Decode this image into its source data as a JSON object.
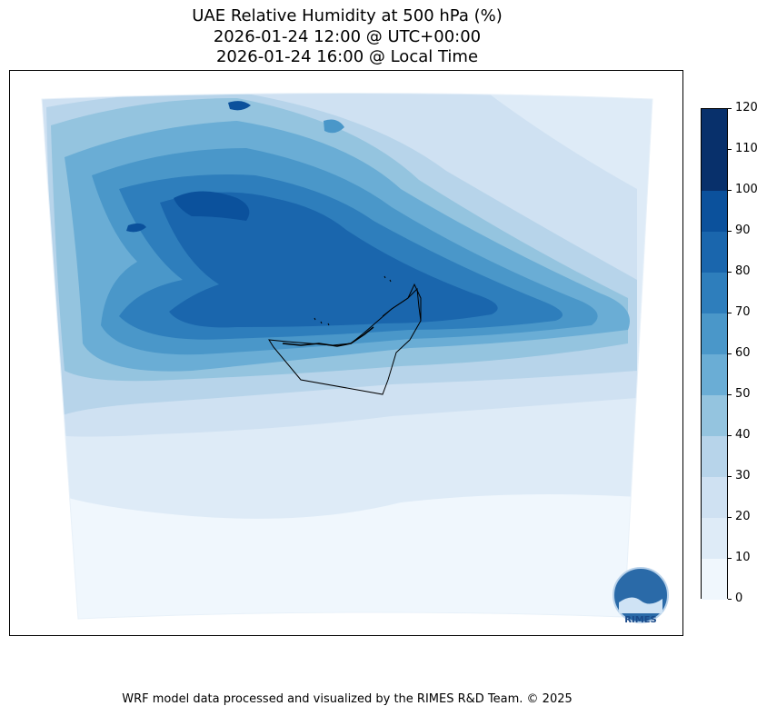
{
  "title": {
    "line1": "UAE Relative Humidity at 500 hPa (%)",
    "line2": "2026-01-24 12:00 @ UTC+00:00",
    "line3": "2026-01-24 16:00 @ Local Time"
  },
  "colorbar": {
    "levels": [
      0,
      10,
      20,
      30,
      40,
      50,
      60,
      70,
      80,
      90,
      100,
      110,
      120
    ],
    "tick_labels": [
      "0",
      "10",
      "20",
      "30",
      "40",
      "50",
      "60",
      "70",
      "80",
      "90",
      "100",
      "110",
      "120"
    ],
    "colors": [
      "#f0f7fd",
      "#deebf7",
      "#cfe1f2",
      "#b7d4ea",
      "#94c4df",
      "#6aadd5",
      "#4a97c9",
      "#2e7ebc",
      "#1a66ad",
      "#0b519c",
      "#08306b",
      "#08306b"
    ]
  },
  "logo": {
    "text": "RIMES"
  },
  "footer": "WRF model data processed and visualized by the RIMES R&D Team. © 2025"
}
